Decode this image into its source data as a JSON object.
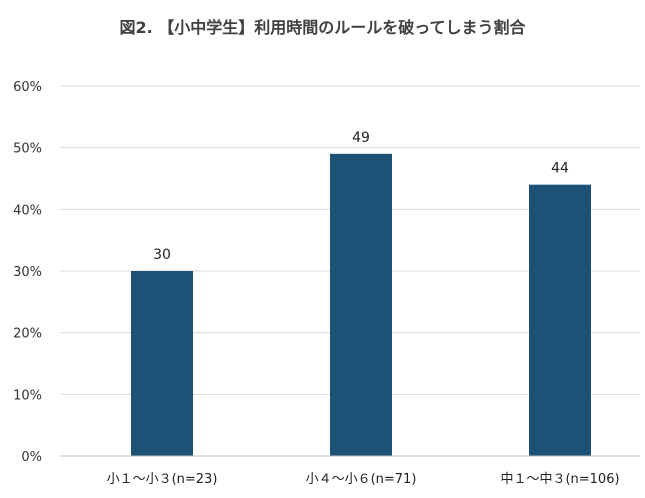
{
  "chart_data": {
    "type": "bar",
    "title": "図2. 【小中学生】利用時間のルールを破ってしまう割合",
    "categories": [
      "小１～小３(n=23)",
      "小４～小６(n=71)",
      "中１～中３(n=106)"
    ],
    "values": [
      30,
      49,
      44
    ],
    "data_labels": [
      "30",
      "49",
      "44"
    ],
    "ylim": [
      0,
      60
    ],
    "yticks": [
      "0%",
      "10%",
      "20%",
      "30%",
      "40%",
      "50%",
      "60%"
    ],
    "xlabel": "",
    "ylabel": "",
    "grid": true,
    "legend": "none",
    "colors": {
      "bar": "#1e5176",
      "grid": "#d9d9d9",
      "axis": "#bfbfbf"
    }
  }
}
